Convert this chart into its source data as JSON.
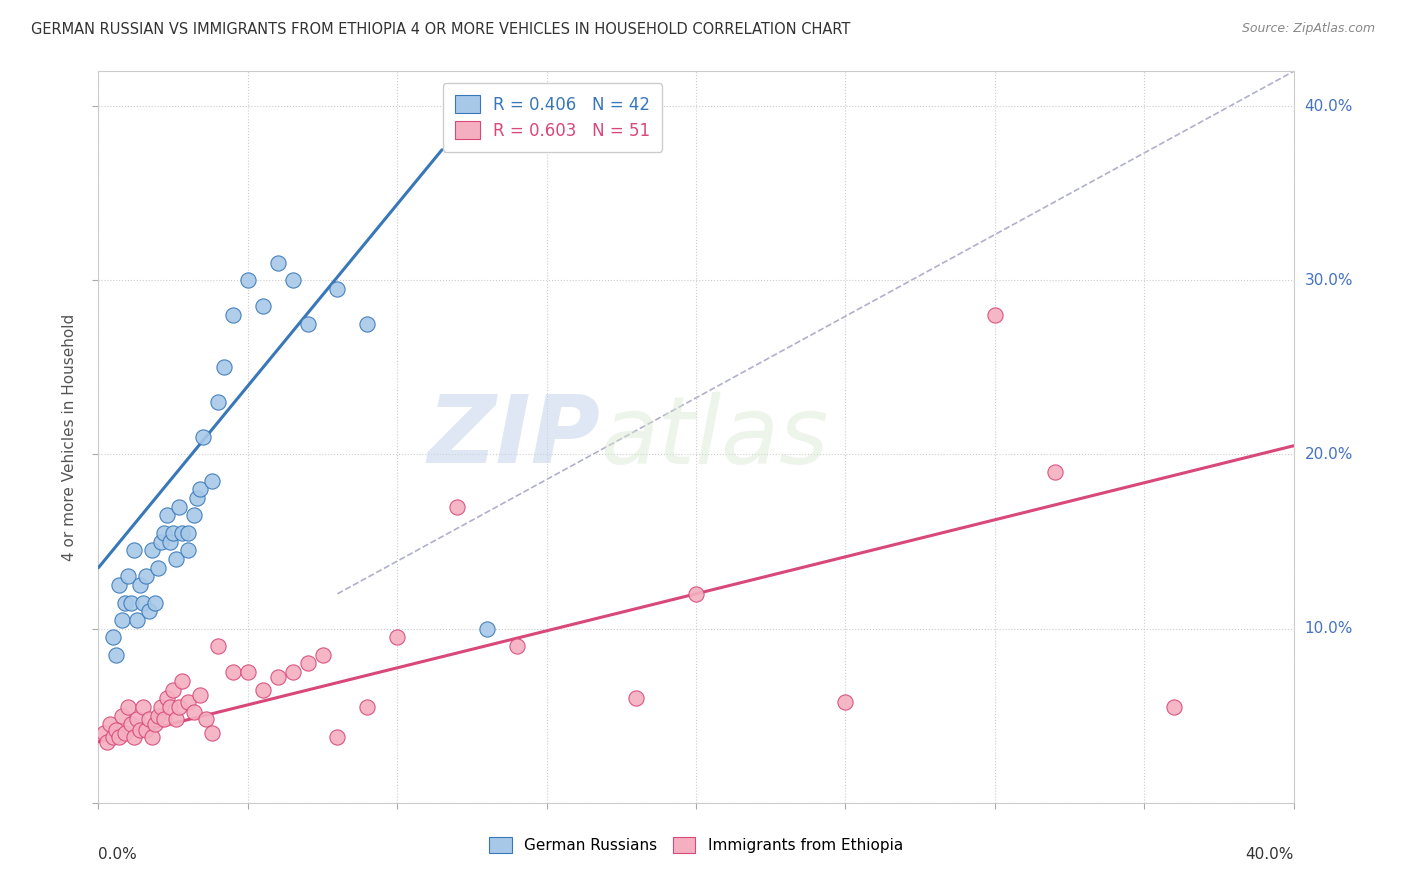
{
  "title": "GERMAN RUSSIAN VS IMMIGRANTS FROM ETHIOPIA 4 OR MORE VEHICLES IN HOUSEHOLD CORRELATION CHART",
  "source": "Source: ZipAtlas.com",
  "ylabel": "4 or more Vehicles in Household",
  "ytick_vals": [
    0.0,
    0.1,
    0.2,
    0.3,
    0.4
  ],
  "ytick_labels_right": [
    "",
    "10.0%",
    "20.0%",
    "30.0%",
    "40.0%"
  ],
  "xlim": [
    0.0,
    0.4
  ],
  "ylim": [
    0.0,
    0.42
  ],
  "legend_r_blue": "R = 0.406",
  "legend_n_blue": "N = 42",
  "legend_r_pink": "R = 0.603",
  "legend_n_pink": "N = 51",
  "legend_label_blue": "German Russians",
  "legend_label_pink": "Immigrants from Ethiopia",
  "color_blue": "#a8c8e8",
  "color_pink": "#f4b0c0",
  "line_color_blue": "#3878b8",
  "line_color_pink": "#d84878",
  "line_dashed_color": "#b0b0cc",
  "watermark_zip": "ZIP",
  "watermark_atlas": "atlas",
  "blue_points_x": [
    0.005,
    0.006,
    0.007,
    0.008,
    0.009,
    0.01,
    0.011,
    0.012,
    0.013,
    0.014,
    0.015,
    0.016,
    0.017,
    0.018,
    0.019,
    0.02,
    0.021,
    0.022,
    0.023,
    0.024,
    0.025,
    0.026,
    0.027,
    0.028,
    0.03,
    0.03,
    0.032,
    0.033,
    0.034,
    0.035,
    0.038,
    0.04,
    0.042,
    0.045,
    0.05,
    0.055,
    0.06,
    0.065,
    0.07,
    0.08,
    0.09,
    0.13
  ],
  "blue_points_y": [
    0.095,
    0.085,
    0.125,
    0.105,
    0.115,
    0.13,
    0.115,
    0.145,
    0.105,
    0.125,
    0.115,
    0.13,
    0.11,
    0.145,
    0.115,
    0.135,
    0.15,
    0.155,
    0.165,
    0.15,
    0.155,
    0.14,
    0.17,
    0.155,
    0.145,
    0.155,
    0.165,
    0.175,
    0.18,
    0.21,
    0.185,
    0.23,
    0.25,
    0.28,
    0.3,
    0.285,
    0.31,
    0.3,
    0.275,
    0.295,
    0.275,
    0.1
  ],
  "pink_points_x": [
    0.002,
    0.003,
    0.004,
    0.005,
    0.006,
    0.007,
    0.008,
    0.009,
    0.01,
    0.011,
    0.012,
    0.013,
    0.014,
    0.015,
    0.016,
    0.017,
    0.018,
    0.019,
    0.02,
    0.021,
    0.022,
    0.023,
    0.024,
    0.025,
    0.026,
    0.027,
    0.028,
    0.03,
    0.032,
    0.034,
    0.036,
    0.038,
    0.04,
    0.045,
    0.05,
    0.055,
    0.06,
    0.065,
    0.07,
    0.075,
    0.08,
    0.09,
    0.1,
    0.12,
    0.14,
    0.18,
    0.2,
    0.25,
    0.3,
    0.32,
    0.36
  ],
  "pink_points_y": [
    0.04,
    0.035,
    0.045,
    0.038,
    0.042,
    0.038,
    0.05,
    0.04,
    0.055,
    0.045,
    0.038,
    0.048,
    0.042,
    0.055,
    0.042,
    0.048,
    0.038,
    0.045,
    0.05,
    0.055,
    0.048,
    0.06,
    0.055,
    0.065,
    0.048,
    0.055,
    0.07,
    0.058,
    0.052,
    0.062,
    0.048,
    0.04,
    0.09,
    0.075,
    0.075,
    0.065,
    0.072,
    0.075,
    0.08,
    0.085,
    0.038,
    0.055,
    0.095,
    0.17,
    0.09,
    0.06,
    0.12,
    0.058,
    0.28,
    0.19,
    0.055
  ],
  "blue_line_x": [
    0.0,
    0.115
  ],
  "blue_line_y": [
    0.135,
    0.375
  ],
  "pink_line_x": [
    0.0,
    0.4
  ],
  "pink_line_y": [
    0.035,
    0.205
  ],
  "diag_line_x": [
    0.08,
    0.4
  ],
  "diag_line_y": [
    0.12,
    0.42
  ]
}
